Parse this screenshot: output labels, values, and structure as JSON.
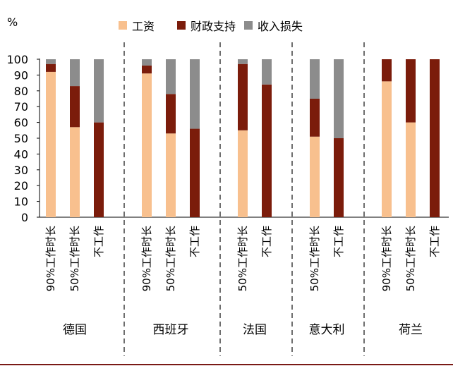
{
  "chart_data": {
    "type": "bar",
    "stacked": true,
    "ylabel": "%",
    "ylim": [
      0,
      100
    ],
    "yticks": [
      0,
      10,
      20,
      30,
      40,
      50,
      60,
      70,
      80,
      90,
      100
    ],
    "legend_position": "top",
    "series": [
      {
        "name": "工资",
        "color": "#f8c08e"
      },
      {
        "name": "财政支持",
        "color": "#7b1c0b"
      },
      {
        "name": "收入损失",
        "color": "#8c8c8c"
      }
    ],
    "groups": [
      {
        "name": "德国",
        "bars": [
          {
            "label": "90%工作时长",
            "values": [
              92,
              5,
              3
            ]
          },
          {
            "label": "50%工作时长",
            "values": [
              57,
              26,
              17
            ]
          },
          {
            "label": "不工作",
            "values": [
              0,
              60,
              40
            ]
          }
        ]
      },
      {
        "name": "西班牙",
        "bars": [
          {
            "label": "90%工作时长",
            "values": [
              91,
              5,
              4
            ]
          },
          {
            "label": "50%工作时长",
            "values": [
              53,
              25,
              22
            ]
          },
          {
            "label": "不工作",
            "values": [
              0,
              56,
              44
            ]
          }
        ]
      },
      {
        "name": "法国",
        "bars": [
          {
            "label": "50%工作时长",
            "values": [
              55,
              42,
              3
            ]
          },
          {
            "label": "不工作",
            "values": [
              0,
              84,
              16
            ]
          }
        ]
      },
      {
        "name": "意大利",
        "bars": [
          {
            "label": "50%工作时长",
            "values": [
              51,
              24,
              25
            ]
          },
          {
            "label": "不工作",
            "values": [
              0,
              50,
              50
            ]
          }
        ]
      },
      {
        "name": "荷兰",
        "bars": [
          {
            "label": "90%工作时长",
            "values": [
              86,
              14,
              0
            ]
          },
          {
            "label": "50%工作时长",
            "values": [
              60,
              40,
              0
            ]
          },
          {
            "label": "不工作",
            "values": [
              0,
              100,
              0
            ]
          }
        ]
      }
    ]
  }
}
